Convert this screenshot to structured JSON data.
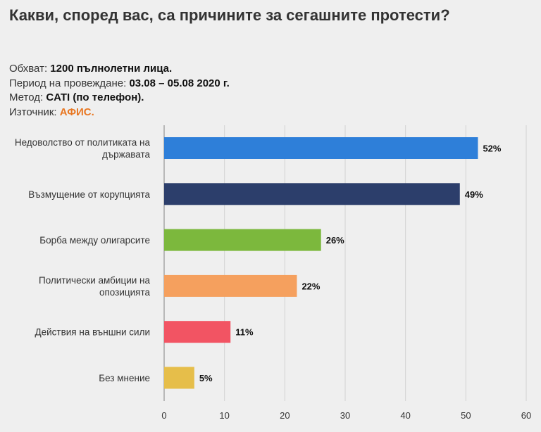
{
  "title": "Какви, според вас, са причините за сегашните протести?",
  "meta": {
    "scope_label": "Обхват:",
    "scope_value": "1200 пълнолетни лица.",
    "period_label": "Период на провеждане:",
    "period_value": "03.08 – 05.08 2020 г.",
    "method_label": "Метод:",
    "method_value": "CATI (по телефон).",
    "source_label": "Източник:",
    "source_value": "АФИС."
  },
  "chart_data": {
    "type": "bar",
    "orientation": "horizontal",
    "categories": [
      [
        "Недоволство от политиката на",
        "държавата"
      ],
      [
        "Възмущение от корупцията"
      ],
      [
        "Борба между олигарсите"
      ],
      [
        "Политически амбиции на",
        "опозицията"
      ],
      [
        "Действия на външни сили"
      ],
      [
        "Без мнение"
      ]
    ],
    "values": [
      52,
      49,
      26,
      22,
      11,
      5
    ],
    "value_labels": [
      "52%",
      "49%",
      "26%",
      "22%",
      "11%",
      "5%"
    ],
    "colors": [
      "#2e7fd9",
      "#2c3e6b",
      "#7cb83d",
      "#f5a05e",
      "#f25463",
      "#e6be4a"
    ],
    "xlim": [
      0,
      60
    ],
    "xticks": [
      0,
      10,
      20,
      30,
      40,
      50,
      60
    ],
    "grid": true
  }
}
